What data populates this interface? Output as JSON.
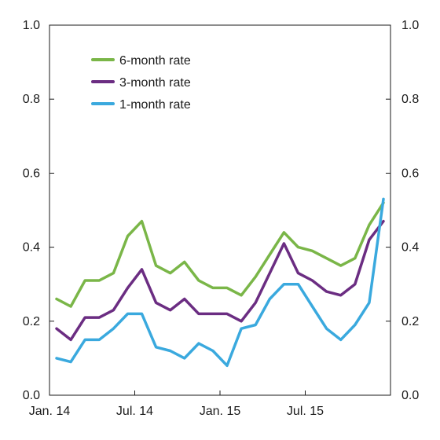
{
  "chart_data": {
    "type": "line",
    "title": "",
    "xlabel": "",
    "ylabel": "",
    "ylim": [
      0,
      1
    ],
    "y_ticks": [
      "0.0",
      "0.2",
      "0.4",
      "0.6",
      "0.8",
      "1.0"
    ],
    "y_ticks_right": [
      "0.0",
      "0.2",
      "0.4",
      "0.6",
      "0.8",
      "1.0"
    ],
    "x_ticks": [
      "Jan. 14",
      "Jul. 14",
      "Jan. 15",
      "Jul. 15"
    ],
    "x_range": [
      "2014-01",
      "2015-12"
    ],
    "grid": false,
    "legend_position": "top-left",
    "x": [
      "2014-01",
      "2014-02",
      "2014-03",
      "2014-04",
      "2014-05",
      "2014-06",
      "2014-07",
      "2014-08",
      "2014-09",
      "2014-10",
      "2014-11",
      "2014-12",
      "2015-01",
      "2015-02",
      "2015-03",
      "2015-04",
      "2015-05",
      "2015-06",
      "2015-07",
      "2015-08",
      "2015-09",
      "2015-10",
      "2015-11",
      "2015-12"
    ],
    "series": [
      {
        "name": "6-month rate",
        "color": "#7ab648",
        "values": [
          0.26,
          0.24,
          0.31,
          0.31,
          0.33,
          0.43,
          0.47,
          0.35,
          0.33,
          0.36,
          0.31,
          0.29,
          0.29,
          0.27,
          0.32,
          0.38,
          0.44,
          0.4,
          0.39,
          0.37,
          0.35,
          0.37,
          0.46,
          0.52
        ]
      },
      {
        "name": "3-month rate",
        "color": "#6b2d82",
        "values": [
          0.18,
          0.15,
          0.21,
          0.21,
          0.23,
          0.29,
          0.34,
          0.25,
          0.23,
          0.26,
          0.22,
          0.22,
          0.22,
          0.2,
          0.25,
          0.33,
          0.41,
          0.33,
          0.31,
          0.28,
          0.27,
          0.3,
          0.42,
          0.47
        ]
      },
      {
        "name": "1-month rate",
        "color": "#3aa9de",
        "values": [
          0.1,
          0.09,
          0.15,
          0.15,
          0.18,
          0.22,
          0.22,
          0.13,
          0.12,
          0.1,
          0.14,
          0.12,
          0.08,
          0.18,
          0.19,
          0.26,
          0.3,
          0.3,
          0.24,
          0.18,
          0.15,
          0.19,
          0.25,
          0.53
        ]
      }
    ]
  }
}
